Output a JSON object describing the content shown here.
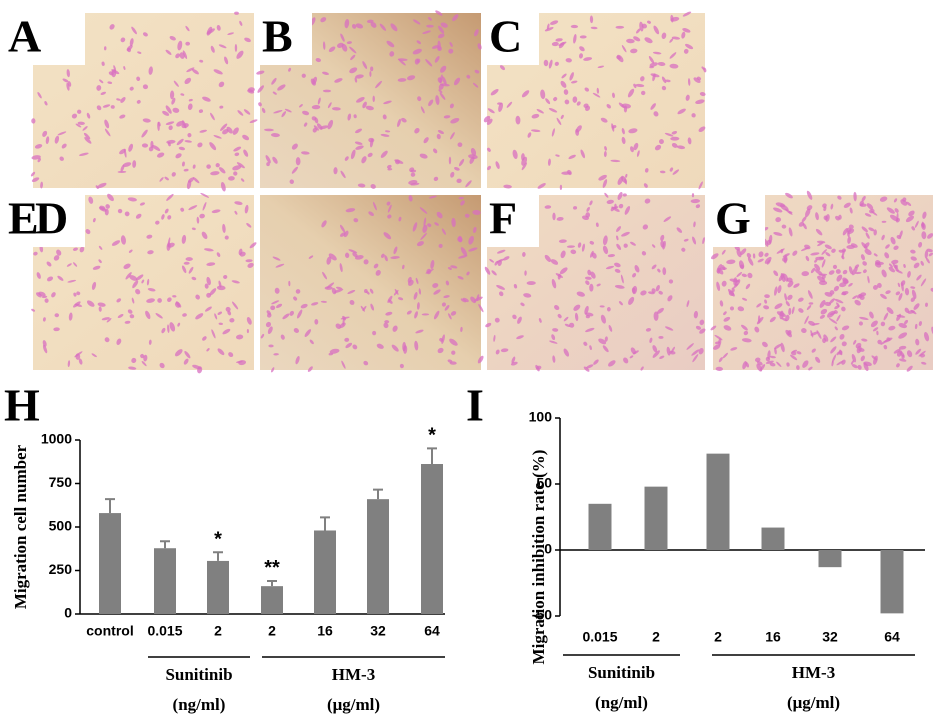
{
  "panel_labels": [
    "A",
    "B",
    "C",
    "D",
    "E",
    "F",
    "G"
  ],
  "chart_data": [
    {
      "type": "bar",
      "panel": "H",
      "ylabel": "Migration cell number",
      "categories": [
        "control",
        "0.015",
        "2",
        "2",
        "16",
        "32",
        "64"
      ],
      "values": [
        580,
        378,
        305,
        160,
        480,
        660,
        862
      ],
      "errors": [
        80,
        40,
        50,
        30,
        75,
        55,
        90
      ],
      "significance": [
        null,
        null,
        "*",
        "**",
        null,
        null,
        "*"
      ],
      "groups": [
        {
          "name": "Sunitinib",
          "unit": "(ng/ml)",
          "from": 1,
          "to": 2
        },
        {
          "name": "HM-3",
          "unit": "(μg/ml)",
          "from": 3,
          "to": 6
        }
      ],
      "color": "#808080",
      "ylim": [
        0,
        1000
      ],
      "yticks": [
        0,
        250,
        500,
        750,
        1000
      ]
    },
    {
      "type": "bar",
      "panel": "I",
      "ylabel": "Migration inhibition rate (%)",
      "categories": [
        "0.015",
        "2",
        "2",
        "16",
        "32",
        "64"
      ],
      "values": [
        35,
        48,
        73,
        17,
        -13,
        -48
      ],
      "groups": [
        {
          "name": "Sunitinib",
          "unit": "(ng/ml)",
          "from": 0,
          "to": 1
        },
        {
          "name": "HM-3",
          "unit": "(μg/ml)",
          "from": 2,
          "to": 5
        }
      ],
      "color": "#808080",
      "ylim": [
        -50,
        100
      ],
      "yticks": [
        -50,
        0,
        50,
        100
      ]
    }
  ]
}
